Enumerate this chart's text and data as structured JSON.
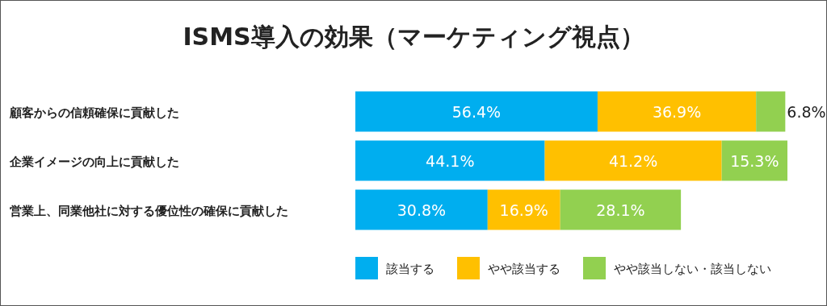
{
  "chart_data": {
    "type": "bar",
    "orientation": "horizontal",
    "stacked": true,
    "title": "ISMS導入の効果（マーケティング視点）",
    "categories": [
      "顧客からの信頼確保に貢献した",
      "企業イメージの向上に貢献した",
      "営業上、同業他社に対する優位性の確保に貢献した"
    ],
    "series": [
      {
        "name": "該当する",
        "color": "#00aeef",
        "values": [
          56.4,
          44.1,
          30.8
        ],
        "value_labels": [
          "56.4%",
          "44.1%",
          "30.8%"
        ]
      },
      {
        "name": "やや該当する",
        "color": "#ffc000",
        "values": [
          36.9,
          41.2,
          16.9
        ],
        "value_labels": [
          "36.9%",
          "41.2%",
          "16.9%"
        ]
      },
      {
        "name": "やや該当しない・該当しない",
        "color": "#92d050",
        "values": [
          6.8,
          15.3,
          28.1
        ],
        "value_labels": [
          "6.8%",
          "15.3%",
          "28.1%"
        ]
      }
    ],
    "legend": "bottom"
  }
}
